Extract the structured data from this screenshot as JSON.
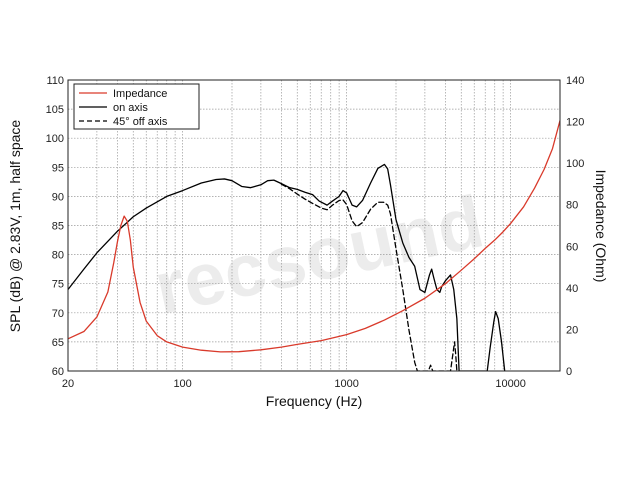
{
  "chart_data": {
    "type": "line",
    "xlabel": "Frequency (Hz)",
    "ylabel_left": "SPL (dB) @ 2.83V, 1m, half space",
    "ylabel_right": "Impedance (Ohm)",
    "x_scale": "log",
    "xlim": [
      20,
      20000
    ],
    "ylim_left": [
      60,
      110
    ],
    "ylim_right": [
      0,
      140
    ],
    "x_tick_labels": [
      "20",
      "100",
      "1000",
      "10000"
    ],
    "y_left_ticks": [
      60,
      65,
      70,
      75,
      80,
      85,
      90,
      95,
      100,
      105,
      110
    ],
    "y_right_ticks": [
      0,
      20,
      40,
      60,
      80,
      100,
      120,
      140
    ],
    "grid": true,
    "legend_position": "top-left",
    "watermark": "recsound",
    "series": [
      {
        "name": "Impedance",
        "axis": "right",
        "color": "#d93a2b",
        "dash": "solid",
        "points": [
          [
            20,
            15.5
          ],
          [
            25,
            19
          ],
          [
            30,
            26
          ],
          [
            35,
            38
          ],
          [
            38,
            52
          ],
          [
            40,
            62
          ],
          [
            42,
            70
          ],
          [
            44,
            74.5
          ],
          [
            46,
            72
          ],
          [
            48,
            63
          ],
          [
            50,
            50
          ],
          [
            55,
            33
          ],
          [
            60,
            24
          ],
          [
            70,
            17
          ],
          [
            80,
            14
          ],
          [
            100,
            11.5
          ],
          [
            130,
            10
          ],
          [
            170,
            9.2
          ],
          [
            220,
            9.3
          ],
          [
            300,
            10.2
          ],
          [
            400,
            11.5
          ],
          [
            500,
            12.8
          ],
          [
            700,
            14.6
          ],
          [
            1000,
            17.5
          ],
          [
            1300,
            20.5
          ],
          [
            1700,
            24.5
          ],
          [
            2200,
            29
          ],
          [
            3000,
            35
          ],
          [
            4000,
            42
          ],
          [
            5000,
            48.5
          ],
          [
            6000,
            54
          ],
          [
            7000,
            59
          ],
          [
            8000,
            63
          ],
          [
            9000,
            67
          ],
          [
            10000,
            71
          ],
          [
            12000,
            79
          ],
          [
            14000,
            88
          ],
          [
            16000,
            97
          ],
          [
            18000,
            107
          ],
          [
            20000,
            120.5
          ]
        ]
      },
      {
        "name": "on axis",
        "axis": "left",
        "color": "#000000",
        "dash": "solid",
        "points": [
          [
            20,
            74
          ],
          [
            25,
            77.5
          ],
          [
            30,
            80.3
          ],
          [
            40,
            84
          ],
          [
            50,
            86.5
          ],
          [
            60,
            88
          ],
          [
            80,
            90
          ],
          [
            100,
            91
          ],
          [
            130,
            92.3
          ],
          [
            160,
            92.9
          ],
          [
            180,
            93
          ],
          [
            200,
            92.7
          ],
          [
            230,
            91.7
          ],
          [
            260,
            91.5
          ],
          [
            300,
            92
          ],
          [
            330,
            92.7
          ],
          [
            360,
            92.8
          ],
          [
            400,
            92.2
          ],
          [
            450,
            91.5
          ],
          [
            500,
            91.2
          ],
          [
            560,
            90.7
          ],
          [
            620,
            90.3
          ],
          [
            680,
            89.2
          ],
          [
            760,
            88.5
          ],
          [
            820,
            89.2
          ],
          [
            900,
            90
          ],
          [
            950,
            91
          ],
          [
            1000,
            90.6
          ],
          [
            1080,
            88.5
          ],
          [
            1150,
            88.2
          ],
          [
            1250,
            89.3
          ],
          [
            1400,
            92.3
          ],
          [
            1550,
            94.8
          ],
          [
            1700,
            95.5
          ],
          [
            1780,
            94.7
          ],
          [
            1850,
            92
          ],
          [
            2000,
            86
          ],
          [
            2200,
            82
          ],
          [
            2400,
            79.5
          ],
          [
            2600,
            78
          ],
          [
            2800,
            74
          ],
          [
            3000,
            73.5
          ],
          [
            3200,
            76.5
          ],
          [
            3300,
            77.5
          ],
          [
            3400,
            76
          ],
          [
            3550,
            74
          ],
          [
            3700,
            73.5
          ],
          [
            3800,
            74.5
          ],
          [
            4000,
            75.5
          ],
          [
            4300,
            76.5
          ],
          [
            4500,
            74
          ],
          [
            4700,
            69
          ],
          [
            4850,
            60
          ],
          [
            7200,
            60
          ],
          [
            7500,
            64
          ],
          [
            7900,
            68.5
          ],
          [
            8100,
            70.2
          ],
          [
            8400,
            69
          ],
          [
            8800,
            65
          ],
          [
            9200,
            60
          ]
        ]
      },
      {
        "name": "45° off axis",
        "axis": "left",
        "color": "#000000",
        "dash": "5,3",
        "points": [
          [
            400,
            92.1
          ],
          [
            450,
            91.3
          ],
          [
            500,
            90.4
          ],
          [
            560,
            89.5
          ],
          [
            620,
            88.8
          ],
          [
            700,
            88
          ],
          [
            760,
            87.7
          ],
          [
            820,
            88.5
          ],
          [
            900,
            89.3
          ],
          [
            950,
            89.4
          ],
          [
            1000,
            88.6
          ],
          [
            1080,
            85.8
          ],
          [
            1150,
            84.8
          ],
          [
            1250,
            85.5
          ],
          [
            1400,
            87.8
          ],
          [
            1550,
            89
          ],
          [
            1680,
            89
          ],
          [
            1780,
            88.5
          ],
          [
            1850,
            87
          ],
          [
            2000,
            81
          ],
          [
            2200,
            74
          ],
          [
            2400,
            67
          ],
          [
            2600,
            61.5
          ],
          [
            2700,
            60
          ],
          [
            3150,
            60
          ],
          [
            3250,
            61
          ],
          [
            3350,
            60
          ],
          [
            4300,
            60
          ],
          [
            4450,
            63
          ],
          [
            4550,
            65
          ],
          [
            4620,
            63
          ],
          [
            4700,
            60
          ]
        ]
      }
    ]
  }
}
